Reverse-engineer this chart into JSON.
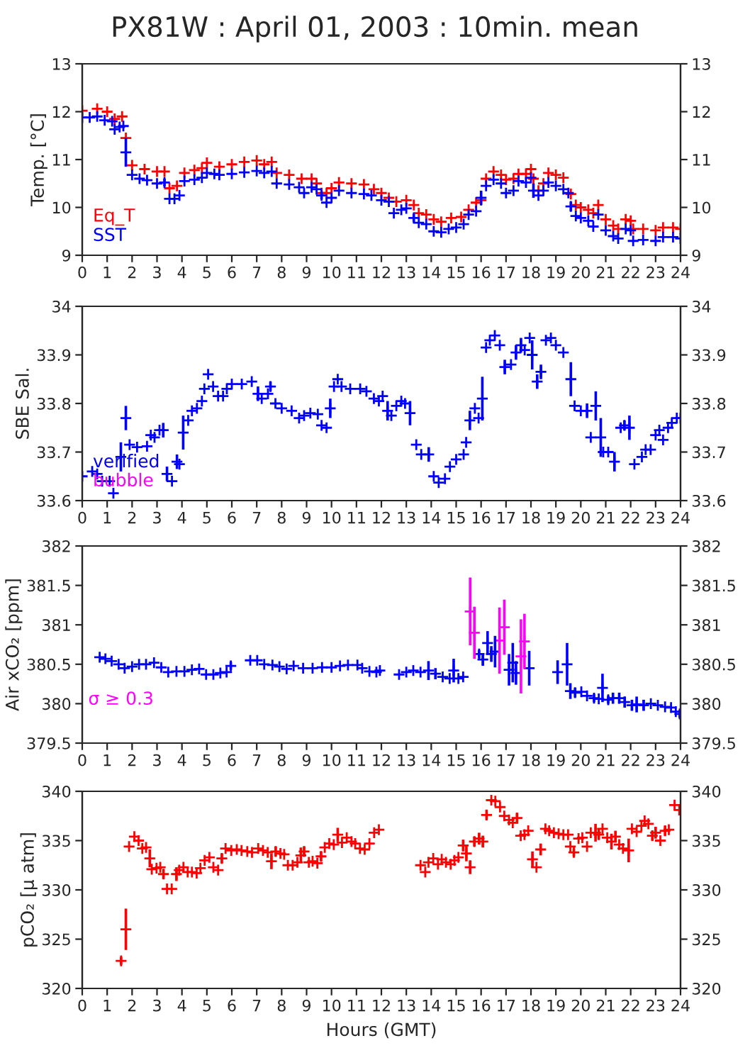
{
  "chart_data": [
    {
      "type": "scatter",
      "title": "PX81W : April 01, 2003 : 10min. mean",
      "ylabel": "Temp. [°C]",
      "legend": "bottom left",
      "marker": "cross",
      "grid": false,
      "xlim": [
        0,
        24
      ],
      "xticks": [
        0,
        1,
        2,
        3,
        4,
        5,
        6,
        7,
        8,
        9,
        10,
        11,
        12,
        13,
        14,
        15,
        16,
        17,
        18,
        19,
        20,
        21,
        22,
        23,
        24
      ],
      "ylim": [
        9,
        13
      ],
      "yticks": [
        9,
        10,
        11,
        12,
        13
      ],
      "y2lim": [
        9,
        13
      ],
      "y2ticks": [
        9,
        10,
        11,
        12,
        13
      ],
      "series": [
        {
          "name": "Eq_T",
          "color": "#ff0000",
          "x": [
            0,
            0.6,
            1.0,
            1.3,
            1.6,
            1.75,
            2.0,
            2.5,
            3.0,
            3.3,
            3.5,
            3.8,
            4.1,
            4.5,
            4.8,
            5.0,
            5.5,
            6.0,
            6.5,
            7.0,
            7.3,
            7.6,
            7.8,
            8.3,
            8.8,
            9.2,
            9.4,
            9.6,
            9.8,
            10.0,
            10.3,
            10.8,
            11.3,
            11.7,
            12.0,
            12.3,
            12.6,
            13.0,
            13.3,
            13.5,
            13.8,
            14.1,
            14.4,
            14.8,
            15.2,
            15.5,
            15.8,
            16.0,
            16.2,
            16.5,
            16.8,
            17.0,
            17.3,
            17.5,
            17.8,
            18.0,
            18.1,
            18.3,
            18.5,
            18.7,
            19.0,
            19.3,
            19.6,
            19.8,
            20.0,
            20.3,
            20.5,
            20.7,
            21.0,
            21.3,
            21.5,
            21.8,
            22.0,
            22.1,
            22.5,
            23.0,
            23.3,
            23.7,
            24
          ],
          "values": [
            12.02,
            12.06,
            12.0,
            11.85,
            11.9,
            11.45,
            10.88,
            10.8,
            10.75,
            10.75,
            10.4,
            10.45,
            10.72,
            10.78,
            10.82,
            10.93,
            10.85,
            10.9,
            10.95,
            10.98,
            10.9,
            10.95,
            10.72,
            10.68,
            10.6,
            10.6,
            10.5,
            10.3,
            10.3,
            10.4,
            10.52,
            10.5,
            10.48,
            10.38,
            10.3,
            10.2,
            10.12,
            10.15,
            10.05,
            9.88,
            9.85,
            9.75,
            9.7,
            9.78,
            9.8,
            9.95,
            10.1,
            10.15,
            10.6,
            10.75,
            10.68,
            10.58,
            10.6,
            10.7,
            10.7,
            10.8,
            10.6,
            10.35,
            10.5,
            10.72,
            10.68,
            10.62,
            10.28,
            10.05,
            10.0,
            9.95,
            9.88,
            10.05,
            9.75,
            9.62,
            9.55,
            9.75,
            9.72,
            9.55,
            9.55,
            9.52,
            9.58,
            9.58,
            9.55
          ]
        },
        {
          "name": "SST",
          "color": "#0000ff",
          "x": [
            0,
            0.3,
            0.6,
            0.9,
            1.2,
            1.3,
            1.5,
            1.65,
            1.75,
            2.0,
            2.3,
            2.6,
            3.0,
            3.3,
            3.5,
            3.7,
            3.9,
            4.1,
            4.5,
            4.8,
            5.0,
            5.3,
            5.5,
            6.0,
            6.5,
            7.0,
            7.3,
            7.6,
            7.8,
            8.3,
            8.7,
            8.9,
            9.2,
            9.4,
            9.6,
            9.8,
            10.0,
            10.3,
            10.8,
            11.3,
            11.6,
            12.0,
            12.3,
            12.5,
            12.8,
            13.0,
            13.3,
            13.5,
            13.8,
            14.1,
            14.4,
            14.7,
            15.0,
            15.3,
            15.5,
            15.8,
            16.0,
            16.2,
            16.5,
            16.8,
            17.0,
            17.3,
            17.5,
            17.8,
            18.0,
            18.1,
            18.3,
            18.5,
            18.7,
            19.0,
            19.3,
            19.5,
            19.6,
            19.8,
            20.0,
            20.3,
            20.5,
            20.7,
            21.0,
            21.3,
            21.5,
            21.8,
            22.0,
            22.1,
            22.5,
            23.0,
            23.3,
            23.7,
            24
          ],
          "values": [
            11.88,
            11.88,
            11.9,
            11.82,
            11.8,
            11.63,
            11.68,
            11.7,
            11.15,
            10.68,
            10.6,
            10.57,
            10.5,
            10.52,
            10.18,
            10.18,
            10.25,
            10.55,
            10.58,
            10.62,
            10.72,
            10.7,
            10.68,
            10.7,
            10.73,
            10.76,
            10.72,
            10.75,
            10.5,
            10.48,
            10.42,
            10.3,
            10.42,
            10.38,
            10.25,
            10.1,
            10.2,
            10.35,
            10.3,
            10.28,
            10.25,
            10.15,
            10.12,
            9.88,
            9.95,
            9.98,
            9.78,
            9.68,
            9.65,
            9.5,
            9.48,
            9.55,
            9.58,
            9.65,
            9.85,
            9.92,
            10.2,
            10.45,
            10.58,
            10.5,
            10.3,
            10.35,
            10.55,
            10.52,
            10.62,
            10.35,
            10.25,
            10.35,
            10.52,
            10.45,
            10.38,
            10.3,
            10.02,
            9.82,
            9.78,
            9.72,
            9.6,
            9.85,
            9.52,
            9.4,
            9.35,
            9.55,
            9.52,
            9.3,
            9.32,
            9.3,
            9.38,
            9.38,
            9.35
          ],
          "errors": [
            null,
            null,
            null,
            null,
            null,
            null,
            null,
            null,
            0.3,
            null,
            null,
            null,
            null,
            0.08,
            null,
            null,
            null,
            null,
            null,
            null,
            null,
            null,
            null,
            null,
            null,
            null,
            null,
            null,
            null,
            null,
            null,
            null,
            null,
            null,
            0.08,
            null,
            null,
            null,
            null,
            null,
            null,
            null,
            null,
            null,
            null,
            null,
            0.08,
            null,
            null,
            null,
            null,
            null,
            null,
            null,
            null,
            null,
            0.15,
            null,
            null,
            null,
            null,
            null,
            null,
            null,
            null,
            0.15,
            null,
            null,
            null,
            null,
            null,
            null,
            0.1,
            null,
            null,
            null,
            null,
            null,
            null,
            null,
            null,
            null,
            null,
            null,
            null,
            null,
            null,
            null,
            null
          ]
        }
      ]
    },
    {
      "type": "scatter",
      "ylabel": "SBE Sal.",
      "legend": "bottom left",
      "marker": "cross",
      "grid": false,
      "xlim": [
        0,
        24
      ],
      "xticks": [
        0,
        1,
        2,
        3,
        4,
        5,
        6,
        7,
        8,
        9,
        10,
        11,
        12,
        13,
        14,
        15,
        16,
        17,
        18,
        19,
        20,
        21,
        22,
        23,
        24
      ],
      "ylim": [
        33.6,
        34
      ],
      "yticks": [
        33.6,
        33.7,
        33.8,
        33.9,
        34
      ],
      "y2lim": [
        33.6,
        34
      ],
      "y2ticks": [
        33.6,
        33.7,
        33.8,
        33.9,
        34
      ],
      "series": [
        {
          "name": "verified",
          "color": "#0000ff",
          "x": [
            0,
            0.4,
            0.6,
            0.8,
            1.1,
            1.25,
            1.55,
            1.75,
            1.9,
            2.2,
            2.6,
            2.75,
            2.9,
            3.1,
            3.25,
            3.4,
            3.6,
            3.8,
            3.9,
            4.05,
            4.25,
            4.4,
            4.6,
            4.8,
            4.9,
            5.05,
            5.25,
            5.45,
            5.65,
            5.8,
            6.0,
            6.4,
            6.8,
            7.05,
            7.2,
            7.45,
            7.55,
            7.75,
            8.0,
            8.4,
            8.7,
            8.9,
            9.15,
            9.45,
            9.6,
            9.8,
            9.95,
            10.1,
            10.25,
            10.4,
            10.75,
            11.15,
            11.4,
            11.7,
            11.9,
            12.05,
            12.25,
            12.4,
            12.6,
            12.8,
            12.95,
            13.15,
            13.4,
            13.6,
            13.9,
            14.1,
            14.3,
            14.55,
            14.75,
            15.0,
            15.3,
            15.4,
            15.55,
            15.75,
            15.9,
            16.05,
            16.2,
            16.35,
            16.55,
            16.75,
            16.95,
            17.2,
            17.4,
            17.6,
            17.75,
            17.95,
            18.05,
            18.25,
            18.4,
            18.6,
            18.8,
            19.0,
            19.3,
            19.6,
            19.75,
            20.0,
            20.25,
            20.4,
            20.6,
            20.8,
            20.9,
            21.1,
            21.35,
            21.6,
            21.75,
            21.95,
            22.15,
            22.45,
            22.6,
            22.8,
            23.0,
            23.15,
            23.3,
            23.5,
            23.65,
            23.85,
            24.0
          ],
          "values": [
            33.65,
            33.66,
            33.655,
            33.64,
            33.64,
            33.615,
            33.69,
            33.77,
            33.715,
            33.71,
            33.712,
            33.735,
            33.73,
            33.745,
            33.745,
            33.655,
            33.64,
            33.68,
            33.675,
            33.74,
            33.765,
            33.785,
            33.79,
            33.805,
            33.83,
            33.86,
            33.835,
            33.815,
            33.815,
            33.83,
            33.84,
            33.84,
            33.845,
            33.82,
            33.81,
            33.82,
            33.835,
            33.8,
            33.79,
            33.785,
            33.77,
            33.775,
            33.78,
            33.778,
            33.755,
            33.75,
            33.79,
            33.835,
            33.85,
            33.835,
            33.83,
            33.83,
            33.825,
            33.81,
            33.805,
            33.815,
            33.785,
            33.775,
            33.795,
            33.805,
            33.8,
            33.78,
            33.715,
            33.695,
            33.695,
            33.65,
            33.637,
            33.645,
            33.67,
            33.685,
            33.695,
            33.72,
            33.765,
            33.79,
            33.77,
            33.81,
            33.915,
            33.93,
            33.94,
            33.92,
            33.875,
            33.88,
            33.905,
            33.92,
            33.91,
            33.935,
            33.9,
            33.845,
            33.865,
            33.93,
            33.935,
            33.92,
            33.905,
            33.85,
            33.795,
            33.785,
            33.785,
            33.73,
            33.795,
            33.73,
            33.7,
            33.7,
            33.68,
            33.75,
            33.755,
            33.75,
            33.675,
            33.69,
            33.705,
            33.705,
            33.735,
            33.745,
            33.725,
            33.75,
            33.76,
            33.77,
            33.77
          ],
          "errors": [
            null,
            null,
            null,
            null,
            null,
            null,
            0.03,
            0.025,
            null,
            null,
            null,
            null,
            null,
            null,
            0.015,
            0.015,
            null,
            0.015,
            null,
            0.035,
            null,
            null,
            null,
            null,
            null,
            null,
            null,
            null,
            null,
            null,
            null,
            null,
            null,
            0.015,
            null,
            null,
            0.01,
            null,
            null,
            null,
            null,
            null,
            null,
            null,
            null,
            null,
            0.02,
            null,
            null,
            null,
            null,
            null,
            null,
            null,
            null,
            null,
            0.02,
            null,
            null,
            null,
            null,
            0.025,
            null,
            null,
            0.015,
            null,
            null,
            null,
            null,
            null,
            null,
            null,
            0.02,
            null,
            null,
            0.045,
            null,
            null,
            null,
            null,
            0.015,
            null,
            0.015,
            0.015,
            null,
            null,
            0.03,
            0.015,
            0.015,
            null,
            null,
            null,
            null,
            0.035,
            null,
            null,
            0.015,
            null,
            0.03,
            0.04,
            null,
            null,
            0.02,
            null,
            0.01,
            0.025,
            null,
            null,
            null,
            null,
            null,
            null,
            null,
            null,
            null,
            null,
            null
          ]
        },
        {
          "name": "bubble",
          "color": "#ff00ff"
        }
      ]
    },
    {
      "type": "scatter",
      "ylabel": "Air xCO₂ [ppm]",
      "marker": "cross",
      "grid": false,
      "annotations": [
        "σ ≥ 0.3"
      ],
      "xlim": [
        0,
        24
      ],
      "xticks": [
        0,
        1,
        2,
        3,
        4,
        5,
        6,
        7,
        8,
        9,
        10,
        11,
        12,
        13,
        14,
        15,
        16,
        17,
        18,
        19,
        20,
        21,
        22,
        23,
        24
      ],
      "ylim": [
        379.5,
        382
      ],
      "yticks": [
        379.5,
        380,
        380.5,
        381,
        381.5,
        382
      ],
      "y2lim": [
        379.5,
        382
      ],
      "y2ticks": [
        379.5,
        380,
        380.5,
        381,
        381.5,
        382
      ],
      "series": [
        {
          "color": "#0000ff",
          "x": [
            0.7,
            0.93,
            1.18,
            1.46,
            1.7,
            2.0,
            2.28,
            2.56,
            2.88,
            3.17,
            3.45,
            3.78,
            4.1,
            4.4,
            4.69,
            4.97,
            5.26,
            5.54,
            5.79,
            5.96,
            6.74,
            7.02,
            7.3,
            7.63,
            7.91,
            8.2,
            8.48,
            8.86,
            9.24,
            9.62,
            10.0,
            10.34,
            10.66,
            11.04,
            11.23,
            11.52,
            11.8,
            11.94,
            12.71,
            13.0,
            13.28,
            13.57,
            13.89,
            14.17,
            14.46,
            14.74,
            14.9,
            15.09,
            15.28,
            15.92,
            16.07,
            16.26,
            16.41,
            16.56,
            17.12,
            17.27,
            17.4,
            17.93,
            19.07,
            19.45,
            19.58,
            19.77,
            20.02,
            20.25,
            20.53,
            20.72,
            20.87,
            21.1,
            21.29,
            21.54,
            21.76,
            22.05,
            22.24,
            22.52,
            22.81,
            23.09,
            23.38,
            23.62,
            23.81,
            23.97
          ],
          "values": [
            380.59,
            380.57,
            380.54,
            380.5,
            380.45,
            380.47,
            380.5,
            380.5,
            380.52,
            380.46,
            380.4,
            380.41,
            380.41,
            380.43,
            380.44,
            380.37,
            380.37,
            380.39,
            380.4,
            380.48,
            380.55,
            380.55,
            380.5,
            380.49,
            380.47,
            380.44,
            380.48,
            380.45,
            380.45,
            380.46,
            380.46,
            380.48,
            380.49,
            380.49,
            380.45,
            380.41,
            380.4,
            380.42,
            380.37,
            380.4,
            380.42,
            380.4,
            380.42,
            380.38,
            380.34,
            380.32,
            380.42,
            380.32,
            380.34,
            380.63,
            380.56,
            380.77,
            380.63,
            380.66,
            380.43,
            380.52,
            380.39,
            380.45,
            380.4,
            380.5,
            380.16,
            380.14,
            380.15,
            380.1,
            380.07,
            380.06,
            380.2,
            380.05,
            380.07,
            380.07,
            380.02,
            379.98,
            379.99,
            379.98,
            380.0,
            379.98,
            379.96,
            379.95,
            379.9,
            379.87
          ],
          "errors": [
            null,
            null,
            null,
            null,
            null,
            null,
            null,
            null,
            null,
            null,
            null,
            null,
            null,
            null,
            null,
            null,
            null,
            null,
            null,
            0.05,
            null,
            null,
            null,
            null,
            null,
            null,
            null,
            null,
            null,
            null,
            null,
            null,
            null,
            null,
            null,
            null,
            null,
            null,
            null,
            null,
            null,
            null,
            0.12,
            0.07,
            null,
            null,
            0.15,
            null,
            null,
            0.05,
            0.08,
            0.15,
            0.1,
            0.2,
            0.2,
            0.25,
            0.15,
            0.22,
            0.15,
            0.27,
            0.1,
            0.06,
            null,
            null,
            0.05,
            null,
            0.18,
            0.05,
            0.07,
            0.07,
            0.07,
            0.07,
            0.1,
            0.07,
            null,
            null,
            null,
            null,
            null,
            0.05
          ]
        },
        {
          "color": "#ff00ff",
          "x": [
            15.56,
            15.73,
            16.74,
            16.93,
            17.6,
            17.74
          ],
          "values": [
            381.17,
            380.9,
            380.8,
            380.97,
            380.6,
            380.79
          ],
          "errors": [
            0.43,
            0.33,
            0.42,
            0.35,
            0.47,
            0.35
          ]
        }
      ]
    },
    {
      "type": "scatter",
      "ylabel": "pCO₂ [μ atm]",
      "xlabel": "Hours (GMT)",
      "marker": "cross",
      "grid": false,
      "xlim": [
        0,
        24
      ],
      "xticks": [
        0,
        1,
        2,
        3,
        4,
        5,
        6,
        7,
        8,
        9,
        10,
        11,
        12,
        13,
        14,
        15,
        16,
        17,
        18,
        19,
        20,
        21,
        22,
        23,
        24
      ],
      "ylim": [
        320,
        340
      ],
      "yticks": [
        320,
        325,
        330,
        335,
        340
      ],
      "y2lim": [
        320,
        340
      ],
      "y2ticks": [
        320,
        325,
        330,
        335,
        340
      ],
      "series": [
        {
          "color": "#ff0000",
          "x": [
            1.56,
            1.75,
            1.88,
            2.09,
            2.26,
            2.41,
            2.56,
            2.71,
            2.79,
            2.98,
            3.13,
            3.26,
            3.4,
            3.59,
            3.78,
            3.89,
            4.06,
            4.23,
            4.4,
            4.59,
            4.74,
            4.91,
            5.1,
            5.26,
            5.45,
            5.6,
            5.75,
            5.98,
            6.2,
            6.39,
            6.62,
            6.81,
            7.06,
            7.25,
            7.44,
            7.59,
            7.76,
            7.95,
            8.1,
            8.25,
            8.44,
            8.63,
            8.77,
            8.9,
            9.09,
            9.24,
            9.43,
            9.58,
            9.73,
            9.91,
            10.09,
            10.25,
            10.42,
            10.61,
            10.8,
            10.95,
            11.14,
            11.33,
            11.52,
            11.71,
            11.9,
            13.57,
            13.76,
            13.89,
            14.08,
            14.27,
            14.42,
            14.59,
            14.78,
            14.93,
            15.09,
            15.28,
            15.41,
            15.56,
            15.73,
            15.92,
            16.07,
            16.22,
            16.41,
            16.57,
            16.76,
            16.93,
            17.12,
            17.27,
            17.44,
            17.59,
            17.74,
            17.89,
            18.06,
            18.22,
            18.39,
            18.58,
            18.73,
            18.92,
            19.11,
            19.3,
            19.49,
            19.58,
            19.72,
            19.91,
            20.06,
            20.25,
            20.4,
            20.59,
            20.72,
            20.87,
            21.06,
            21.23,
            21.39,
            21.54,
            21.69,
            21.92,
            22.05,
            22.24,
            22.43,
            22.56,
            22.71,
            22.87,
            23.0,
            23.19,
            23.38,
            23.53,
            23.76,
            23.95
          ],
          "values": [
            322.8,
            326,
            334.4,
            335.4,
            335.0,
            334.2,
            334.3,
            333.2,
            332.1,
            332.2,
            332.3,
            331.6,
            330.1,
            330.1,
            331.6,
            332.0,
            332.3,
            331.8,
            331.8,
            331.7,
            332.2,
            333.0,
            333.3,
            332.3,
            332.0,
            333.2,
            334.2,
            334.0,
            334.1,
            334.0,
            333.9,
            333.8,
            334.2,
            334.0,
            333.8,
            332.9,
            333.9,
            333.7,
            333.6,
            332.5,
            332.5,
            332.8,
            333.5,
            333.9,
            332.8,
            332.9,
            332.7,
            333.4,
            334.3,
            334.7,
            334.6,
            335.6,
            334.8,
            335.3,
            334.9,
            334.7,
            334.2,
            334.1,
            334.7,
            335.8,
            336.1,
            332.5,
            331.8,
            332.8,
            333.2,
            332.6,
            333.1,
            332.8,
            332.6,
            333.0,
            333.3,
            334.5,
            333.7,
            332.3,
            334.9,
            335.2,
            334.9,
            337.6,
            339.1,
            339.0,
            338.4,
            337.5,
            337.1,
            336.8,
            337.3,
            335.5,
            335.6,
            336.0,
            333.1,
            332.3,
            334.1,
            336.2,
            336.0,
            335.8,
            335.7,
            335.6,
            335.6,
            334.4,
            333.8,
            335.2,
            335.3,
            334.4,
            335.8,
            335.8,
            335.6,
            336.2,
            335.3,
            334.9,
            335.4,
            334.6,
            334.2,
            334.0,
            336.2,
            335.9,
            336.5,
            337.0,
            336.7,
            335.5,
            335.8,
            335.0,
            336.0,
            336.1,
            338.6,
            338.1
          ],
          "errors": [
            0.4,
            2.1,
            null,
            null,
            null,
            null,
            null,
            0.9,
            null,
            null,
            null,
            0.5,
            null,
            null,
            0.7,
            null,
            null,
            null,
            null,
            null,
            null,
            null,
            null,
            null,
            null,
            0.5,
            null,
            null,
            null,
            null,
            null,
            null,
            null,
            null,
            null,
            0.8,
            0.5,
            null,
            null,
            null,
            null,
            null,
            0.8,
            0.5,
            null,
            null,
            null,
            0.5,
            null,
            null,
            null,
            0.7,
            null,
            null,
            null,
            null,
            null,
            null,
            null,
            null,
            null,
            null,
            null,
            null,
            null,
            null,
            null,
            null,
            null,
            null,
            null,
            0.6,
            0.8,
            0.7,
            0.5,
            0.6,
            0.6,
            0.5,
            null,
            null,
            null,
            null,
            null,
            null,
            0.5,
            null,
            null,
            null,
            0.8,
            null,
            0.6,
            null,
            null,
            null,
            null,
            null,
            null,
            null,
            0.4,
            null,
            null,
            null,
            null,
            0.9,
            0.5,
            null,
            null,
            0.8,
            0.6,
            null,
            null,
            1.2,
            null,
            null,
            null,
            null,
            null,
            0.5,
            0.6,
            null,
            0.5,
            null,
            null,
            null
          ]
        }
      ]
    }
  ]
}
